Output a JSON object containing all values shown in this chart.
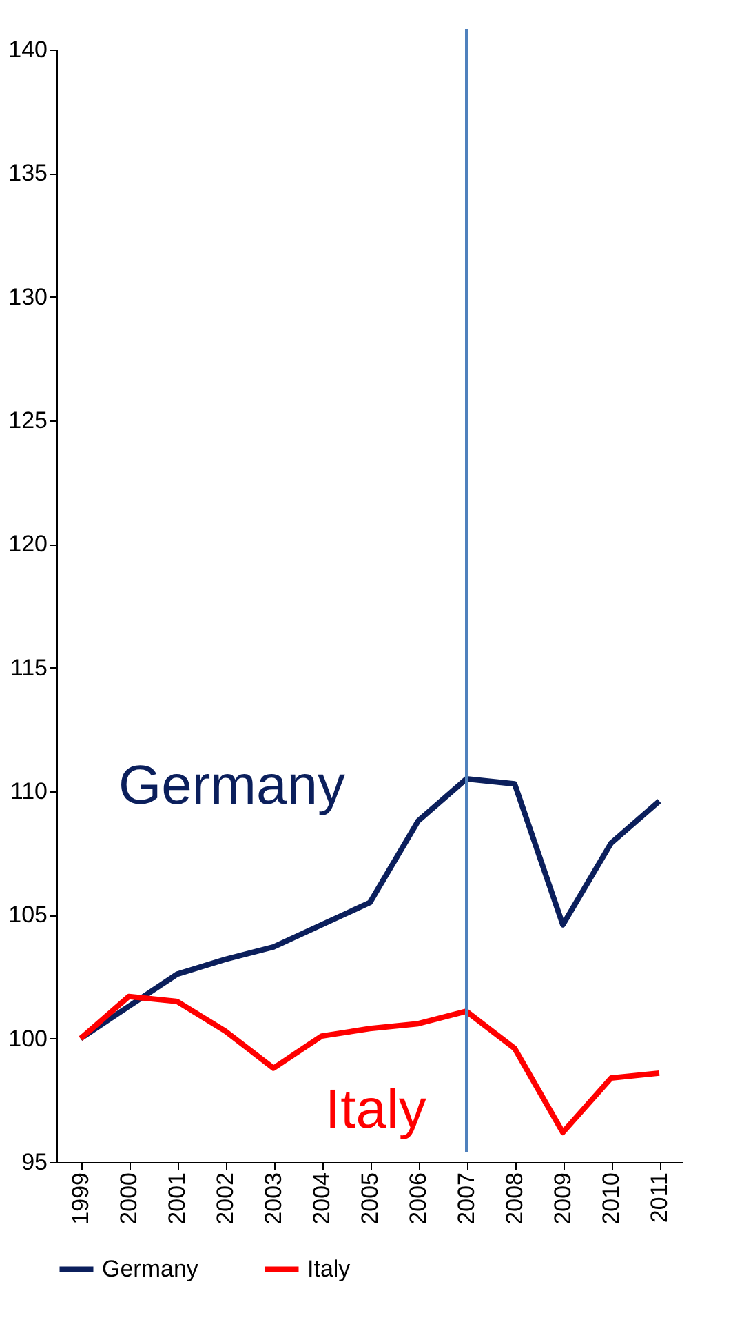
{
  "chart_data": {
    "type": "line",
    "categories": [
      "1999",
      "2000",
      "2001",
      "2002",
      "2003",
      "2004",
      "2005",
      "2006",
      "2007",
      "2008",
      "2009",
      "2010",
      "2011"
    ],
    "series": [
      {
        "name": "Germany",
        "color": "#0b1f5c",
        "values": [
          100,
          101.3,
          102.6,
          103.2,
          103.7,
          104.6,
          105.5,
          108.8,
          110.5,
          110.3,
          104.6,
          107.9,
          109.6
        ]
      },
      {
        "name": "Italy",
        "color": "#ff0000",
        "values": [
          100,
          101.7,
          101.5,
          100.3,
          98.8,
          100.1,
          100.4,
          100.6,
          101.1,
          99.6,
          96.2,
          98.4,
          98.6
        ]
      }
    ],
    "ylim": [
      95,
      140
    ],
    "yticks": [
      95,
      100,
      105,
      110,
      115,
      120,
      125,
      130,
      135,
      140
    ],
    "ref_lines": [
      {
        "axis": "x",
        "value": "2007",
        "color": "#4f81bd"
      }
    ],
    "annotations": [
      "Germany",
      "Italy"
    ],
    "legend": "bottom",
    "grid": false,
    "marker": "none",
    "line_style": "solid"
  }
}
